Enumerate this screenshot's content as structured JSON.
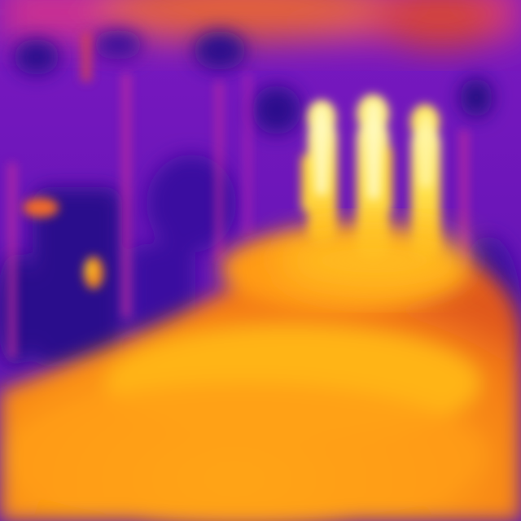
{
  "image": {
    "kind": "thermal-camera-frame",
    "palette": "ironbow",
    "palette_colors": {
      "coldest": "#2a0a8c",
      "cold": "#5a14b8",
      "cool": "#9a1fc8",
      "mid": "#cc2e9a",
      "warm": "#f0641e",
      "hot": "#ffa012",
      "hotter": "#ffc61a",
      "hottest": "#fff27a"
    },
    "subjects": [
      {
        "name": "person-left"
      },
      {
        "name": "person-center"
      },
      {
        "name": "person-right"
      }
    ]
  }
}
